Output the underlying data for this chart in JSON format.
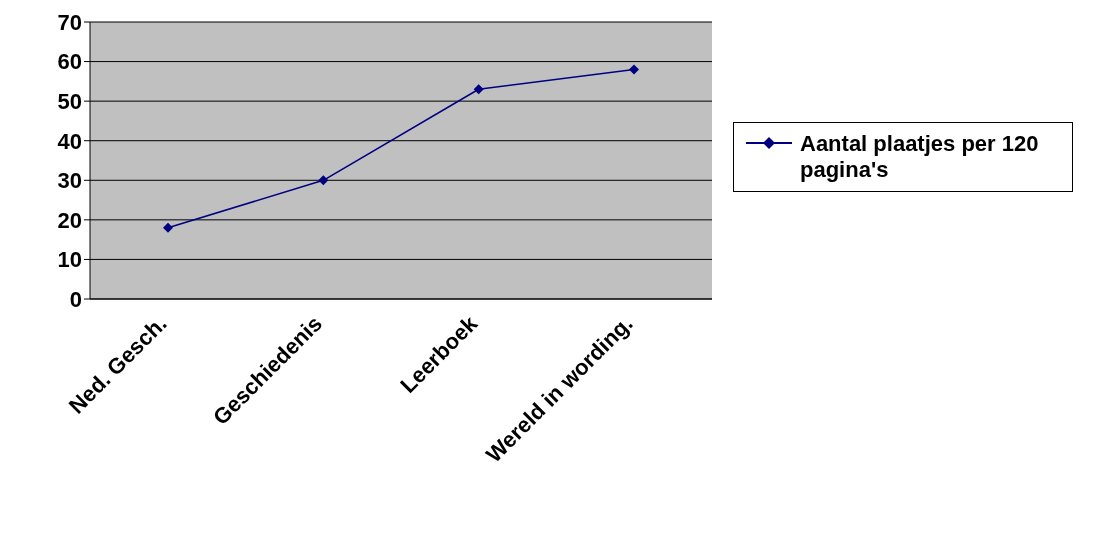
{
  "chart_data": {
    "type": "line",
    "categories": [
      "Ned. Gesch.",
      "Geschiedenis",
      "Leerboek",
      "Wereld in wording."
    ],
    "series": [
      {
        "name": "Aantal plaatjes per 120 pagina's",
        "color": "#000080",
        "values": [
          18,
          30,
          53,
          58
        ]
      }
    ],
    "ylim": [
      0,
      70
    ],
    "yticks": [
      0,
      10,
      20,
      30,
      40,
      50,
      60,
      70
    ],
    "grid": "y",
    "legend": "right",
    "marker": "diamond",
    "line_style": "solid"
  }
}
